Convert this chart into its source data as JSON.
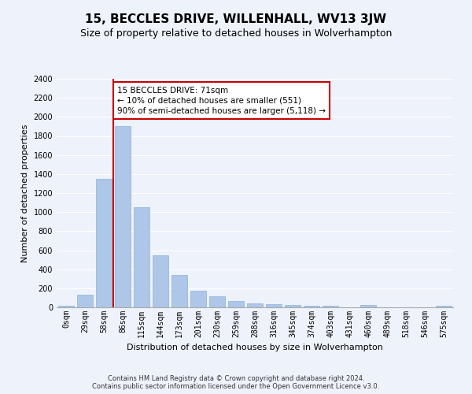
{
  "title": "15, BECCLES DRIVE, WILLENHALL, WV13 3JW",
  "subtitle": "Size of property relative to detached houses in Wolverhampton",
  "xlabel": "Distribution of detached houses by size in Wolverhampton",
  "ylabel": "Number of detached properties",
  "categories": [
    "0sqm",
    "29sqm",
    "58sqm",
    "86sqm",
    "115sqm",
    "144sqm",
    "173sqm",
    "201sqm",
    "230sqm",
    "259sqm",
    "288sqm",
    "316sqm",
    "345sqm",
    "374sqm",
    "403sqm",
    "431sqm",
    "460sqm",
    "489sqm",
    "518sqm",
    "546sqm",
    "575sqm"
  ],
  "values": [
    15,
    130,
    1350,
    1900,
    1050,
    550,
    340,
    175,
    115,
    65,
    40,
    30,
    25,
    20,
    15,
    0,
    25,
    0,
    0,
    0,
    15
  ],
  "bar_color": "#aec6e8",
  "bar_edge_color": "#8ab4d8",
  "vline_color": "#cc0000",
  "vline_pos": 2.5,
  "annotation_text": "15 BECCLES DRIVE: 71sqm\n← 10% of detached houses are smaller (551)\n90% of semi-detached houses are larger (5,118) →",
  "annotation_box_color": "#ffffff",
  "annotation_box_edge": "#cc0000",
  "ylim": [
    0,
    2400
  ],
  "yticks": [
    0,
    200,
    400,
    600,
    800,
    1000,
    1200,
    1400,
    1600,
    1800,
    2000,
    2200,
    2400
  ],
  "footer1": "Contains HM Land Registry data © Crown copyright and database right 2024.",
  "footer2": "Contains public sector information licensed under the Open Government Licence v3.0.",
  "bg_color": "#eef2fb",
  "plot_bg_color": "#eef2fb",
  "grid_color": "#ffffff",
  "title_fontsize": 11,
  "subtitle_fontsize": 9,
  "label_fontsize": 8,
  "tick_fontsize": 7,
  "footer_fontsize": 6,
  "annotation_fontsize": 7.5
}
